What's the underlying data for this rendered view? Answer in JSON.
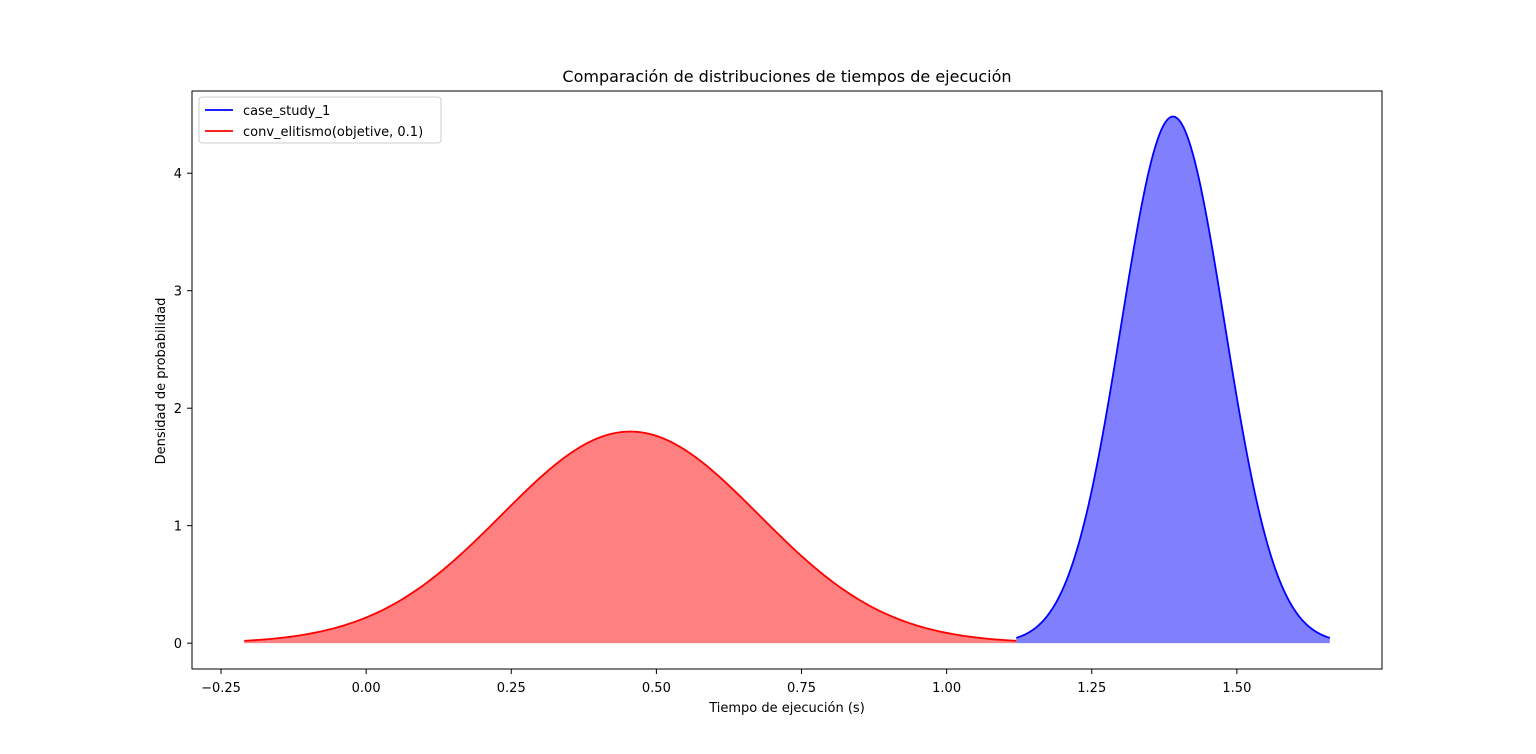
{
  "chart_data": {
    "type": "area",
    "title": "Comparación de distribuciones de tiempos de ejecución",
    "xlabel": "Tiempo de ejecución (s)",
    "ylabel": "Densidad de probabilidad",
    "xlim": [
      -0.3,
      1.75
    ],
    "ylim": [
      -0.22,
      4.7
    ],
    "xticks": [
      -0.25,
      0.0,
      0.25,
      0.5,
      0.75,
      1.0,
      1.25,
      1.5
    ],
    "xtick_labels": [
      "−0.25",
      "0.00",
      "0.25",
      "0.50",
      "0.75",
      "1.00",
      "1.25",
      "1.50"
    ],
    "yticks": [
      0,
      1,
      2,
      3,
      4
    ],
    "ytick_labels": [
      "0",
      "1",
      "2",
      "3",
      "4"
    ],
    "grid": false,
    "legend_position": "top-left",
    "series": [
      {
        "name": "case_study_1",
        "color": "#0000ff",
        "fill_color": "#8080ff",
        "distribution": "normal",
        "mean": 1.39,
        "std": 0.089,
        "x_range": [
          1.12,
          1.66
        ]
      },
      {
        "name": "conv_elitismo(objetive, 0.1)",
        "color": "#ff0000",
        "fill_color": "#ff8080",
        "distribution": "normal",
        "mean": 0.455,
        "std": 0.2215,
        "x_range": [
          -0.21,
          1.12
        ]
      }
    ]
  }
}
